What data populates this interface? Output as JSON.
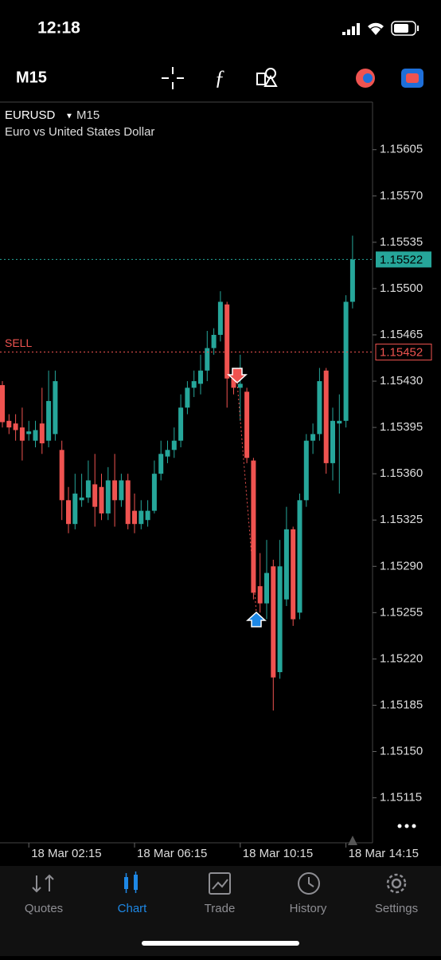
{
  "ui": {
    "clock": "12:18",
    "timeframe": "M15",
    "tabs": [
      "Quotes",
      "Chart",
      "Trade",
      "History",
      "Settings"
    ]
  },
  "chart_data": {
    "type": "candlestick",
    "title": "EURUSD",
    "timeframe": "M15",
    "subtitle": "Euro vs United States Dollar",
    "categories": [
      null,
      null,
      null,
      null,
      "18 Mar 02:15",
      null,
      null,
      null,
      null,
      null,
      null,
      null,
      null,
      null,
      null,
      null,
      null,
      null,
      null,
      null,
      "18 Mar 06:15",
      null,
      null,
      null,
      null,
      null,
      null,
      null,
      null,
      null,
      null,
      null,
      null,
      null,
      null,
      null,
      "18 Mar 10:15",
      null,
      null,
      null,
      null,
      null,
      null,
      null,
      null,
      null,
      null,
      null,
      null,
      null,
      null,
      null,
      "18 Mar 14:15",
      null
    ],
    "open": [
      1.15427,
      1.154,
      1.15398,
      1.15395,
      1.1539,
      1.15385,
      1.15398,
      1.15385,
      1.1539,
      1.15378,
      1.1534,
      1.15322,
      1.1534,
      1.15342,
      1.15352,
      1.1535,
      1.1533,
      1.15355,
      1.1534,
      1.15355,
      1.15332,
      1.15322,
      1.15325,
      1.15332,
      1.1536,
      1.15373,
      1.15378,
      1.15385,
      1.1541,
      1.15425,
      1.15428,
      1.15438,
      1.15455,
      1.15465,
      1.15488,
      1.15432,
      1.15425,
      1.15422,
      1.1537,
      1.15275,
      1.15262,
      1.1529,
      1.1521,
      1.15265,
      1.15318,
      1.15255,
      1.1534,
      1.15385,
      1.1539,
      1.15438,
      1.15368,
      1.15398,
      1.154,
      1.1549
    ],
    "high": [
      1.1543,
      1.15405,
      1.15405,
      1.1541,
      1.154,
      1.154,
      1.15425,
      1.15438,
      1.15438,
      1.15385,
      1.1535,
      1.1536,
      1.1536,
      1.1537,
      1.15375,
      1.1536,
      1.15365,
      1.15375,
      1.1536,
      1.1536,
      1.15345,
      1.1534,
      1.1534,
      1.1537,
      1.15385,
      1.15385,
      1.15395,
      1.1542,
      1.1543,
      1.15438,
      1.1545,
      1.15468,
      1.1547,
      1.15498,
      1.1549,
      1.1544,
      1.1545,
      1.15425,
      1.15372,
      1.153,
      1.1531,
      1.15295,
      1.1531,
      1.15335,
      1.1532,
      1.15345,
      1.1539,
      1.15398,
      1.1544,
      1.1544,
      1.1541,
      1.1542,
      1.15495,
      1.1554
    ],
    "low": [
      1.15395,
      1.1539,
      1.15385,
      1.1537,
      1.15385,
      1.1538,
      1.15375,
      1.1538,
      1.15385,
      1.15325,
      1.15315,
      1.15318,
      1.15335,
      1.15338,
      1.1532,
      1.15325,
      1.15325,
      1.1532,
      1.15335,
      1.15318,
      1.15315,
      1.15318,
      1.1532,
      1.1533,
      1.15355,
      1.15368,
      1.15372,
      1.1538,
      1.15405,
      1.15418,
      1.1542,
      1.1543,
      1.1545,
      1.1546,
      1.1541,
      1.1542,
      1.154,
      1.15368,
      1.15265,
      1.15255,
      1.1525,
      1.15181,
      1.15205,
      1.1526,
      1.15245,
      1.1525,
      1.15335,
      1.15375,
      1.15385,
      1.1536,
      1.15355,
      1.15345,
      1.15395,
      1.15485
    ],
    "close": [
      1.15399,
      1.15395,
      1.15393,
      1.15385,
      1.15392,
      1.15393,
      1.15383,
      1.15415,
      1.1543,
      1.1534,
      1.15322,
      1.15345,
      1.15342,
      1.15355,
      1.15335,
      1.1533,
      1.15355,
      1.1534,
      1.15355,
      1.15322,
      1.15322,
      1.15332,
      1.15332,
      1.1536,
      1.15375,
      1.15378,
      1.15385,
      1.1541,
      1.15425,
      1.1543,
      1.15438,
      1.15455,
      1.15465,
      1.1549,
      1.15432,
      1.15425,
      1.15428,
      1.15372,
      1.1527,
      1.15262,
      1.15285,
      1.15206,
      1.1529,
      1.15318,
      1.1525,
      1.1534,
      1.15385,
      1.1539,
      1.1543,
      1.15368,
      1.154,
      1.154,
      1.1549,
      1.15522
    ],
    "up_color": "#26a69a",
    "down_color": "#ef5350",
    "ylim": [
      1.15081,
      1.15641
    ],
    "yticks": [
      1.15605,
      {
        "value": 1.1557,
        "label": "1.15570"
      },
      1.15535,
      {
        "value": 1.155,
        "label": "1.15500"
      },
      1.15465,
      {
        "value": 1.1543,
        "label": "1.15430"
      },
      1.15395,
      {
        "value": 1.1536,
        "label": "1.15360"
      },
      1.15325,
      {
        "value": 1.1529,
        "label": "1.15290"
      },
      1.15255,
      {
        "value": 1.1522,
        "label": "1.15220"
      },
      1.15185,
      {
        "value": 1.1515,
        "label": "1.15150"
      },
      1.15115
    ],
    "bid_price": 1.15522,
    "sell_price": 1.15452,
    "sell_label": "SELL"
  }
}
